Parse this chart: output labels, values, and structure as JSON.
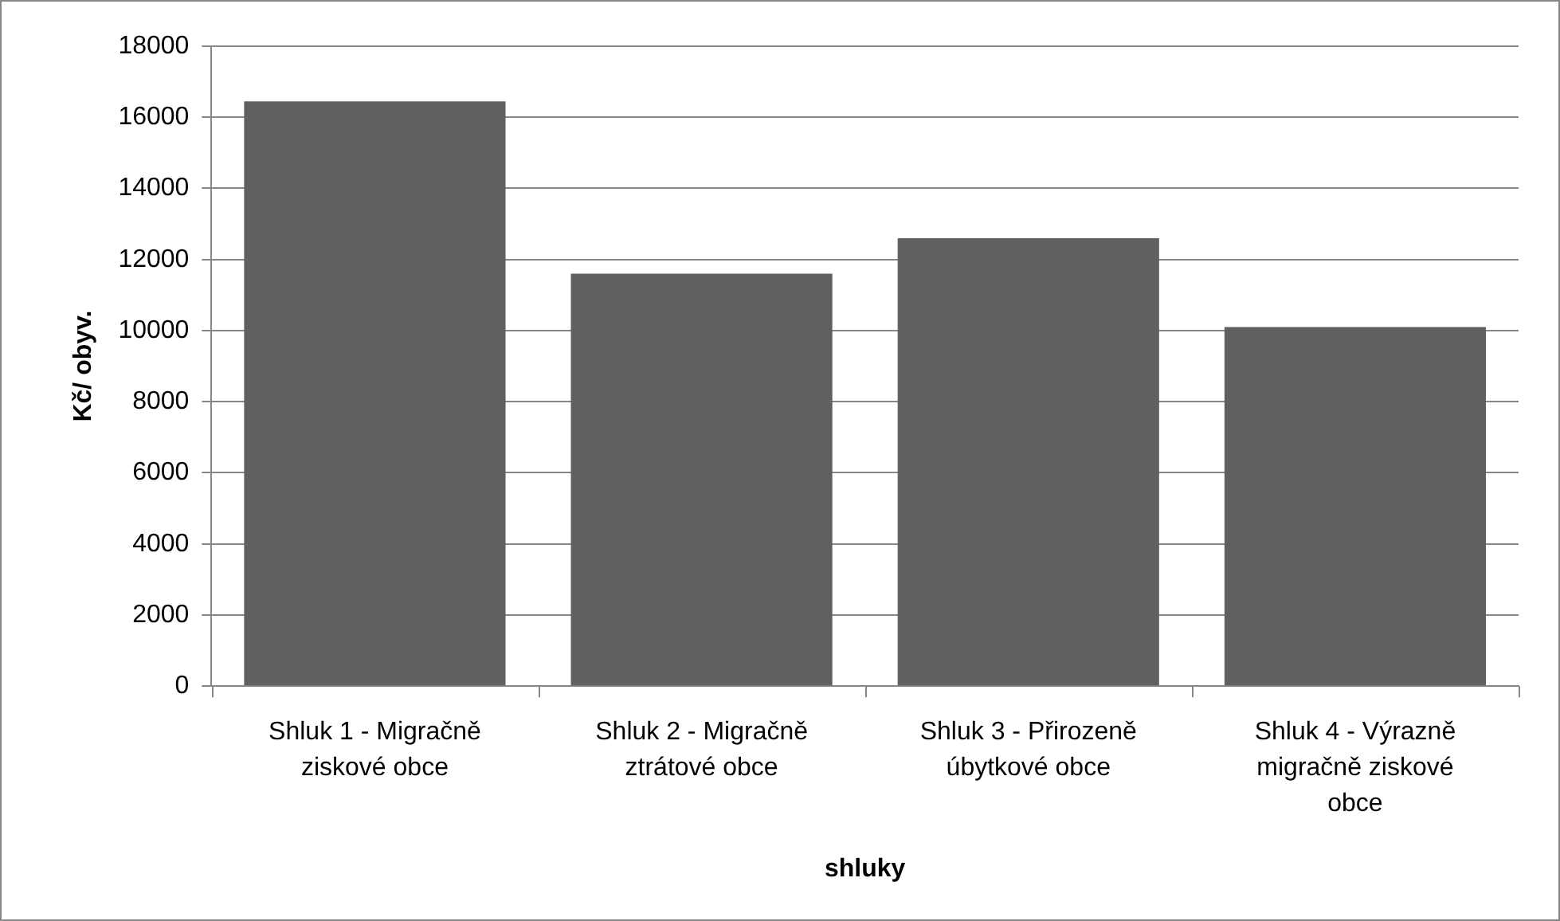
{
  "chart_data": {
    "type": "bar",
    "xlabel": "shluky",
    "ylabel": "Kč/ obyv.",
    "categories": [
      "Shluk 1 - Migračně ziskové obce",
      "Shluk 2 - Migračně ztrátové obce",
      "Shluk 3 - Přirozeně úbytkové obce",
      "Shluk 4 - Výrazně migračně ziskové obce"
    ],
    "values": [
      16450,
      11600,
      12600,
      10100
    ],
    "color": "#606060",
    "ylim": [
      0,
      18000
    ],
    "yticks": [
      0,
      2000,
      4000,
      6000,
      8000,
      10000,
      12000,
      14000,
      16000,
      18000
    ],
    "grid": "y",
    "legend": false
  }
}
